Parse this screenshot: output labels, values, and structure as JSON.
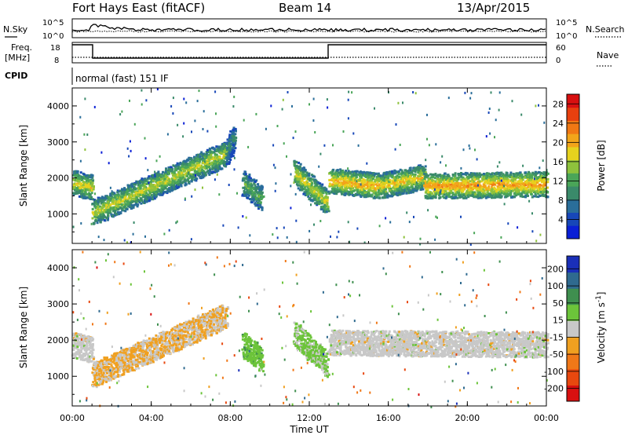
{
  "header": {
    "title": "Fort Hays East (fitACF)",
    "beam": "Beam 14",
    "date": "13/Apr/2015"
  },
  "top_panels": {
    "nsky_label": "N.Sky",
    "nsearch_label": "N.Search",
    "nsky_ticks": [
      "10^5",
      "10^0"
    ],
    "nsearch_ticks": [
      "10^5",
      "10^0"
    ],
    "freq_label": "Freq.",
    "freq_unit": "[MHz]",
    "freq_ticks": [
      "18",
      "8"
    ],
    "nave_label": "Nave",
    "nave_ticks": [
      "60",
      "0"
    ],
    "cpid_label": "CPID",
    "cpid_text": "normal (fast) 151 IF"
  },
  "chart_data": [
    {
      "type": "heatmap",
      "panel": "power",
      "title": "",
      "xlabel": "",
      "ylabel": "Slant Range [km]",
      "x_ticks": [
        "00:00",
        "04:00",
        "08:00",
        "12:00",
        "16:00",
        "20:00",
        "00:00"
      ],
      "xlim_hours": [
        0,
        24
      ],
      "y_ticks": [
        1000,
        2000,
        3000,
        4000
      ],
      "ylim": [
        180,
        4500
      ],
      "colorbar": {
        "label": "Power [dB]",
        "ticks": [
          4,
          8,
          12,
          16,
          20,
          24,
          28
        ],
        "range": [
          0,
          30
        ],
        "colors": [
          "#0a1fd6",
          "#1747b8",
          "#2a6e9a",
          "#3a8a6a",
          "#4aa558",
          "#8ec23c",
          "#e6d21e",
          "#f2a51a",
          "#f07814",
          "#e8400f",
          "#d81010"
        ]
      },
      "echo_bands": [
        {
          "t_start": 0.0,
          "t_end": 1.0,
          "range_start": 1900,
          "range_end": 1750,
          "value": 18
        },
        {
          "t_start": 1.0,
          "t_end": 7.8,
          "range_start": 1050,
          "range_end": 2700,
          "value": 17
        },
        {
          "t_start": 7.8,
          "t_end": 8.2,
          "range_start": 2700,
          "range_end": 3200,
          "value": 10
        },
        {
          "t_start": 8.6,
          "t_end": 9.6,
          "range_start": 1900,
          "range_end": 1450,
          "value": 13
        },
        {
          "t_start": 11.2,
          "t_end": 12.9,
          "range_start": 2200,
          "range_end": 1350,
          "value": 18
        },
        {
          "t_start": 13.0,
          "t_end": 15.5,
          "range_start": 1950,
          "range_end": 1800,
          "value": 21
        },
        {
          "t_start": 15.5,
          "t_end": 17.8,
          "range_start": 1800,
          "range_end": 2050,
          "value": 19
        },
        {
          "t_start": 17.8,
          "t_end": 24.0,
          "range_start": 1800,
          "range_end": 1850,
          "value": 22
        }
      ]
    },
    {
      "type": "heatmap",
      "panel": "velocity",
      "title": "",
      "xlabel": "Time UT",
      "ylabel": "Slant Range [km]",
      "x_ticks": [
        "00:00",
        "04:00",
        "08:00",
        "12:00",
        "16:00",
        "20:00",
        "00:00"
      ],
      "xlim_hours": [
        0,
        24
      ],
      "y_ticks": [
        1000,
        2000,
        3000,
        4000
      ],
      "ylim": [
        180,
        4500
      ],
      "colorbar": {
        "label": "Velocity [m s^-1]",
        "ticks": [
          200,
          100,
          50,
          15,
          -15,
          -50,
          -100,
          -200
        ],
        "range": [
          -250,
          250
        ],
        "colors": [
          "#1a2fb8",
          "#2f6a8f",
          "#3f8f4f",
          "#6cc43a",
          "#c8c8c8",
          "#f0a020",
          "#f07818",
          "#e8480f",
          "#d81010"
        ]
      },
      "echo_bands": [
        {
          "t_start": 0.0,
          "t_end": 1.0,
          "range_start": 1900,
          "range_end": 1750,
          "value": 0
        },
        {
          "t_start": 1.0,
          "t_end": 7.8,
          "range_start": 1050,
          "range_end": 2700,
          "value": -30
        },
        {
          "t_start": 8.6,
          "t_end": 9.6,
          "range_start": 1900,
          "range_end": 1450,
          "value": 60
        },
        {
          "t_start": 11.2,
          "t_end": 12.9,
          "range_start": 2200,
          "range_end": 1350,
          "value": 40
        },
        {
          "t_start": 13.0,
          "t_end": 24.0,
          "range_start": 1950,
          "range_end": 1900,
          "value": 0
        }
      ]
    }
  ]
}
